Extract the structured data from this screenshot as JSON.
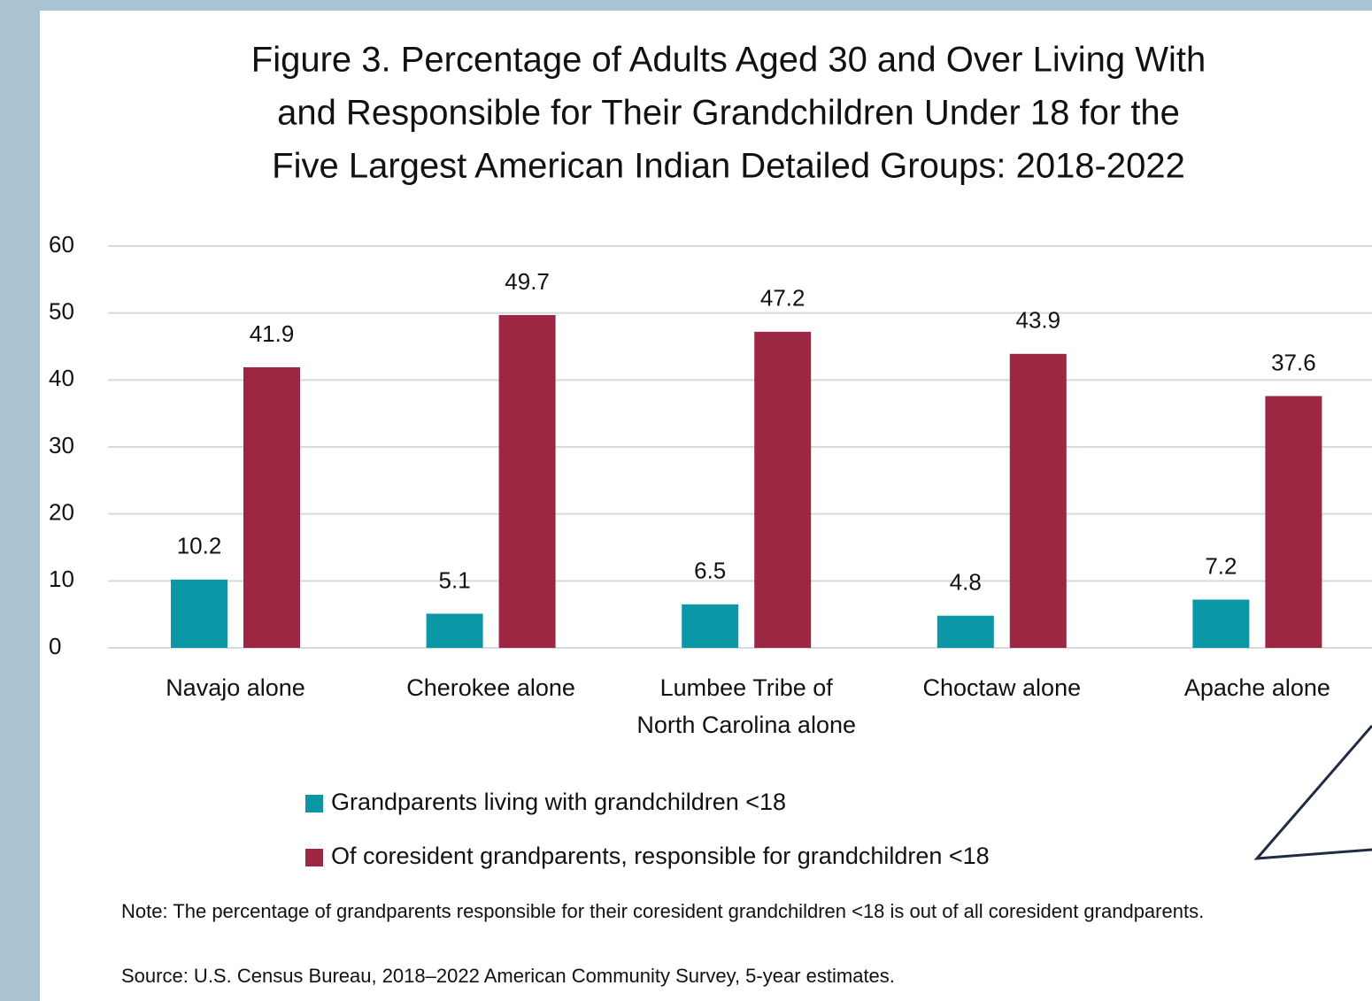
{
  "chart_data": {
    "type": "bar",
    "title": [
      "Figure 3. Percentage of Adults Aged 30 and Over Living With",
      "and Responsible for Their Grandchildren Under 18  for the",
      "Five Largest American Indian Detailed Groups: 2018-2022"
    ],
    "categories": [
      "Navajo alone",
      "Cherokee alone",
      "Lumbee Tribe of North Carolina alone",
      "Choctaw alone",
      "Apache alone"
    ],
    "series": [
      {
        "name": "Grandparents living with grandchildren <18",
        "color": "#0c97a6",
        "values": [
          10.2,
          5.1,
          6.5,
          4.8,
          7.2
        ]
      },
      {
        "name": "Of coresident grandparents, responsible for grandchildren <18",
        "color": "#9b2743",
        "values": [
          41.9,
          49.7,
          47.2,
          43.9,
          37.6
        ]
      }
    ],
    "ylim": [
      0,
      60
    ],
    "yticks": [
      0,
      10,
      20,
      30,
      40,
      50,
      60
    ],
    "grid": true,
    "note": "Note: The percentage of grandparents responsible for their coresident grandchildren <18 is out of all coresident grandparents.",
    "source": "Source: U.S. Census Bureau, 2018–2022 American Community Survey, 5-year estimates."
  }
}
